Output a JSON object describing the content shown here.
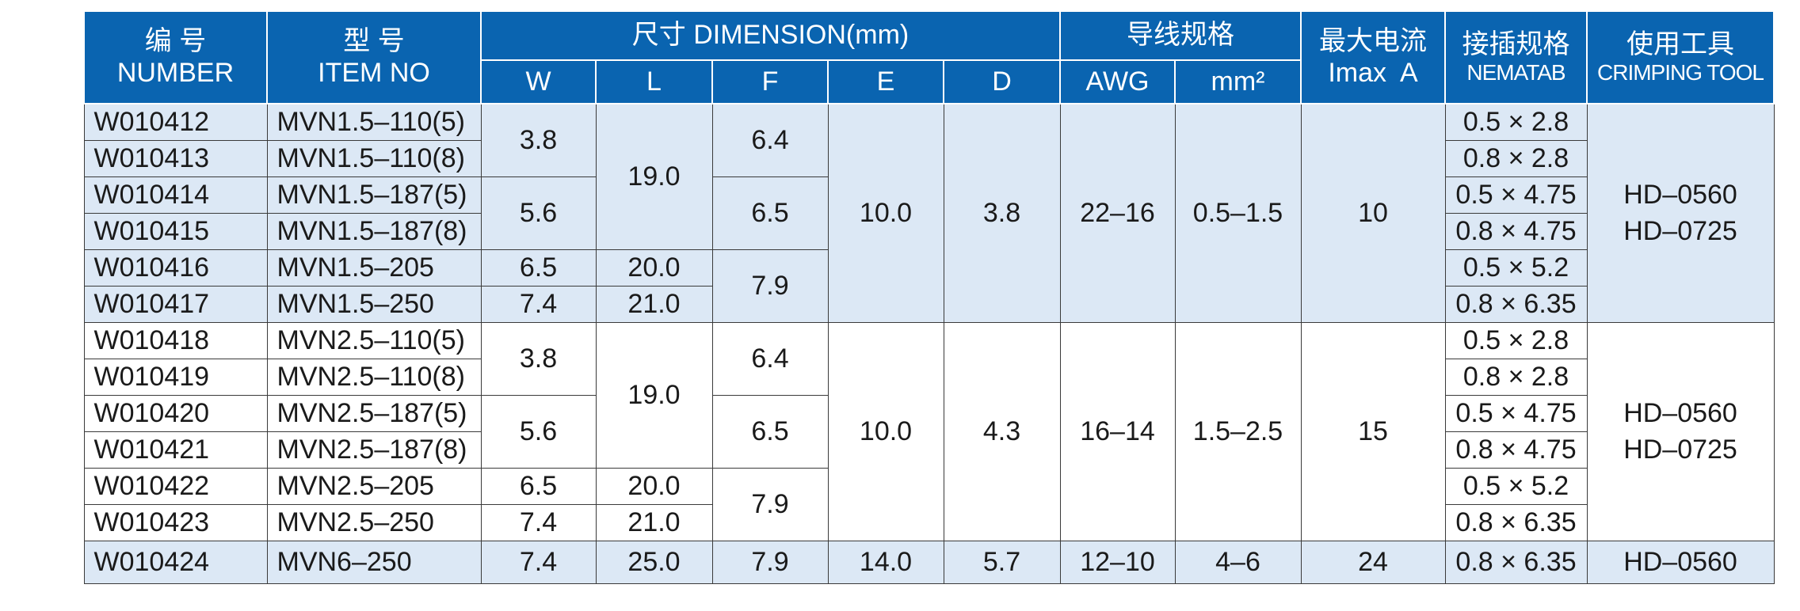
{
  "header": {
    "number_cn": "编 号",
    "number_en": "NUMBER",
    "item_cn": "型 号",
    "item_en": "ITEM NO",
    "dimension": "尺寸 DIMENSION(mm)",
    "W": "W",
    "L": "L",
    "F": "F",
    "E": "E",
    "D": "D",
    "wire_cn": "导线规格",
    "awg": "AWG",
    "mm2": "mm²",
    "imax_cn": "最大电流",
    "imax_en": "Imax  A",
    "nematab_cn": "接插规格",
    "nematab_en": "NEMATAB",
    "tool_cn": "使用工具",
    "tool_en": "CRIMPING TOOL"
  },
  "body": {
    "number": [
      "W010412",
      "W010413",
      "W010414",
      "W010415",
      "W010416",
      "W010417",
      "W010418",
      "W010419",
      "W010420",
      "W010421",
      "W010422",
      "W010423",
      "W010424"
    ],
    "item": [
      "MVN1.5–110(5)",
      "MVN1.5–110(8)",
      "MVN1.5–187(5)",
      "MVN1.5–187(8)",
      "MVN1.5–205",
      "MVN1.5–250",
      "MVN2.5–110(5)",
      "MVN2.5–110(8)",
      "MVN2.5–187(5)",
      "MVN2.5–187(8)",
      "MVN2.5–205",
      "MVN2.5–250",
      "MVN6–250"
    ],
    "W": [
      "3.8",
      "5.6",
      "6.5",
      "7.4",
      "3.8",
      "5.6",
      "6.5",
      "7.4",
      "7.4"
    ],
    "L": [
      "19.0",
      "20.0",
      "21.0",
      "19.0",
      "20.0",
      "21.0",
      "25.0"
    ],
    "F": [
      "6.4",
      "6.5",
      "7.9",
      "6.4",
      "6.5",
      "7.9",
      "7.9"
    ],
    "E": [
      "10.0",
      "10.0",
      "14.0"
    ],
    "D": [
      "3.8",
      "4.3",
      "5.7"
    ],
    "awg": [
      "22–16",
      "16–14",
      "12–10"
    ],
    "mm2": [
      "0.5–1.5",
      "1.5–2.5",
      "4–6"
    ],
    "imax": [
      "10",
      "15",
      "24"
    ],
    "nematab": [
      "0.5 × 2.8",
      "0.8 × 2.8",
      "0.5 × 4.75",
      "0.8 × 4.75",
      "0.5 × 5.2",
      "0.8 × 6.35",
      "0.5 × 2.8",
      "0.8 × 2.8",
      "0.5 × 4.75",
      "0.8 × 4.75",
      "0.5 × 5.2",
      "0.8 × 6.35",
      "0.8 × 6.35"
    ],
    "tool": [
      [
        "HD–0560",
        "HD–0725"
      ],
      [
        "HD–0560",
        "HD–0725"
      ],
      [
        "HD–0560"
      ]
    ]
  }
}
